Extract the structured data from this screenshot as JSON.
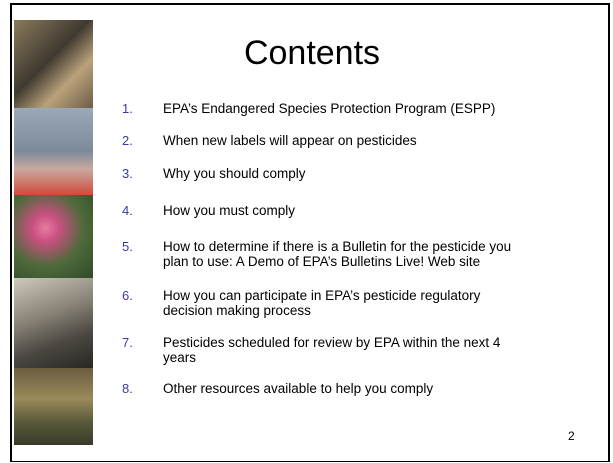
{
  "title": "Contents",
  "items": [
    {
      "number": "1.",
      "lines": [
        "EPA’s Endangered Species Protection Program (ESPP)"
      ]
    },
    {
      "number": "2.",
      "lines": [
        "When new labels will appear on pesticides"
      ]
    },
    {
      "number": "3.",
      "lines": [
        "Why you should comply"
      ]
    },
    {
      "number": "4.",
      "lines": [
        "How you must comply"
      ]
    },
    {
      "number": "5.",
      "lines": [
        "How to determine if there is a Bulletin for the pesticide you",
        "plan to use: A Demo of EPA’s Bulletins Live! Web site"
      ]
    },
    {
      "number": "6.",
      "lines": [
        "How you can participate in EPA’s pesticide regulatory",
        "decision making process"
      ]
    },
    {
      "number": "7.",
      "lines": [
        "Pesticides scheduled for review by EPA within the next 4",
        "years"
      ]
    },
    {
      "number": "8.",
      "lines": [
        "Other resources available to help you comply"
      ]
    }
  ],
  "page_number": "2"
}
